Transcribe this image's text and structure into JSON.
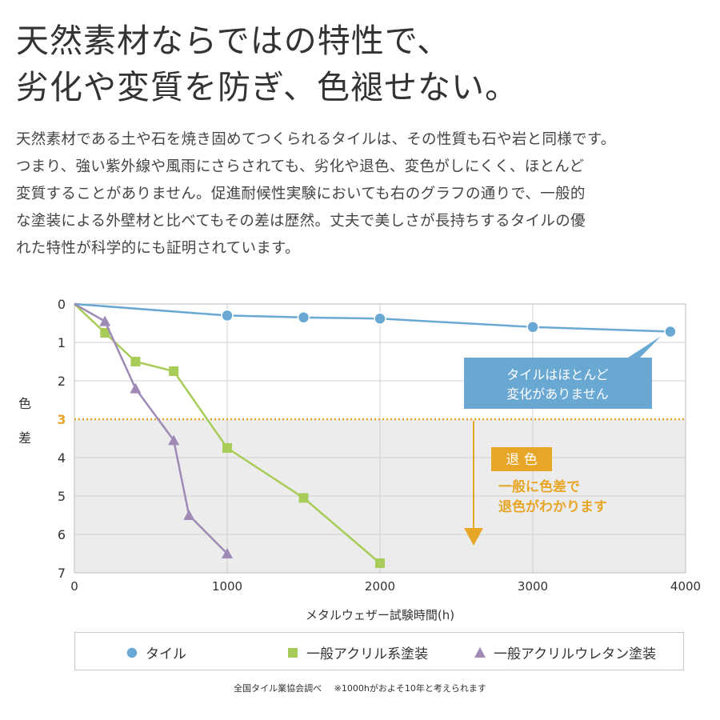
{
  "headline": {
    "line1": "天然素材ならではの特性で、",
    "line2": "劣化や変質を防ぎ、色褪せない。"
  },
  "body": {
    "line1": "天然素材である土や石を焼き固めてつくられるタイルは、その性質も石や岩と同様です。",
    "line2": "つまり、強い紫外線や風雨にさらされても、劣化や退色、変色がしにくく、ほとんど",
    "line3": "変質することがありません。促進耐候性実験においても右のグラフの通りで、一般的",
    "line4": "な塗装による外壁材と比べてもその差は歴然。丈夫で美しさが長持ちするタイルの優",
    "line5": "れた特性が科学的にも証明されています。"
  },
  "colors": {
    "tile": "#6aa8d4",
    "acrylic": "#a8cc58",
    "urethane": "#9e8ab4",
    "threshold": "#e8a628",
    "callout_tile_bg": "#6aa8d4",
    "callout_fade_bg": "#e8a628"
  },
  "chart_data": {
    "type": "line",
    "xlabel": "メタルウェザー試験時間(h)",
    "ylabel": "色差",
    "xlim": [
      0,
      4000
    ],
    "ylim": [
      0,
      7
    ],
    "y_inverted": true,
    "x_ticks": [
      0,
      1000,
      2000,
      3000,
      4000
    ],
    "y_ticks": [
      0,
      1,
      2,
      3,
      4,
      5,
      6,
      7
    ],
    "grid": true,
    "legend_position": "bottom",
    "series": [
      {
        "name": "タイル",
        "marker": "circle",
        "x": [
          0,
          1000,
          1500,
          2000,
          3000,
          3900
        ],
        "y": [
          0,
          0.3,
          0.35,
          0.38,
          0.6,
          0.72
        ]
      },
      {
        "name": "一般アクリル系塗装",
        "marker": "square",
        "x": [
          0,
          200,
          400,
          650,
          1000,
          1500,
          2000
        ],
        "y": [
          0,
          0.75,
          1.5,
          1.75,
          3.75,
          5.05,
          6.75
        ]
      },
      {
        "name": "一般アクリルウレタン塗装",
        "marker": "triangle",
        "x": [
          0,
          200,
          400,
          650,
          750,
          1000
        ],
        "y": [
          0,
          0.45,
          2.2,
          3.55,
          5.5,
          6.5
        ]
      }
    ],
    "threshold": {
      "y": 3
    },
    "annotations": {
      "tile_line1": "タイルはほとんど",
      "tile_line2": "変化がありません",
      "fade_title": "退 色",
      "fade_line1": "一般に色差で",
      "fade_line2": "退色がわかります"
    }
  },
  "footnote": {
    "source": "全国タイル業協会調べ",
    "note": "※1000hがおよそ10年と考えられます"
  }
}
